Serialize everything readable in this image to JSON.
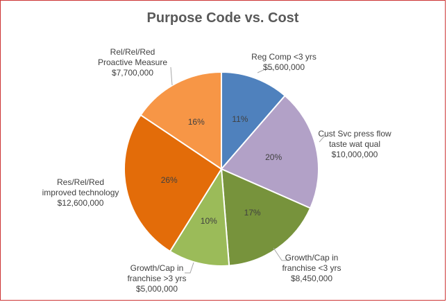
{
  "chart_data": {
    "type": "pie",
    "title": "Purpose Code vs. Cost",
    "slices": [
      {
        "label": [
          "Reg Comp <3 yrs"
        ],
        "value": 5600000,
        "value_label": "$5,600,000",
        "percent_label": "11%",
        "color": "#4f81bd"
      },
      {
        "label": [
          "Cust Svc press flow",
          "taste wat qual"
        ],
        "value": 10000000,
        "value_label": "$10,000,000",
        "percent_label": "20%",
        "color": "#b2a1c7"
      },
      {
        "label": [
          "Growth/Cap in",
          "franchise <3 yrs"
        ],
        "value": 8450000,
        "value_label": "$8,450,000",
        "percent_label": "17%",
        "color": "#77933c"
      },
      {
        "label": [
          "Growth/Cap in",
          "franchise >3 yrs"
        ],
        "value": 5000000,
        "value_label": "$5,000,000",
        "percent_label": "10%",
        "color": "#9bbb59"
      },
      {
        "label": [
          "Res/Rel/Red",
          "improved technology"
        ],
        "value": 12600000,
        "value_label": "$12,600,000",
        "percent_label": "26%",
        "color": "#e36c09"
      },
      {
        "label": [
          "Rel/Rel/Red",
          "Proactive Measure"
        ],
        "value": 7700000,
        "value_label": "$7,700,000",
        "percent_label": "16%",
        "color": "#f79646"
      }
    ],
    "legend": "none"
  }
}
